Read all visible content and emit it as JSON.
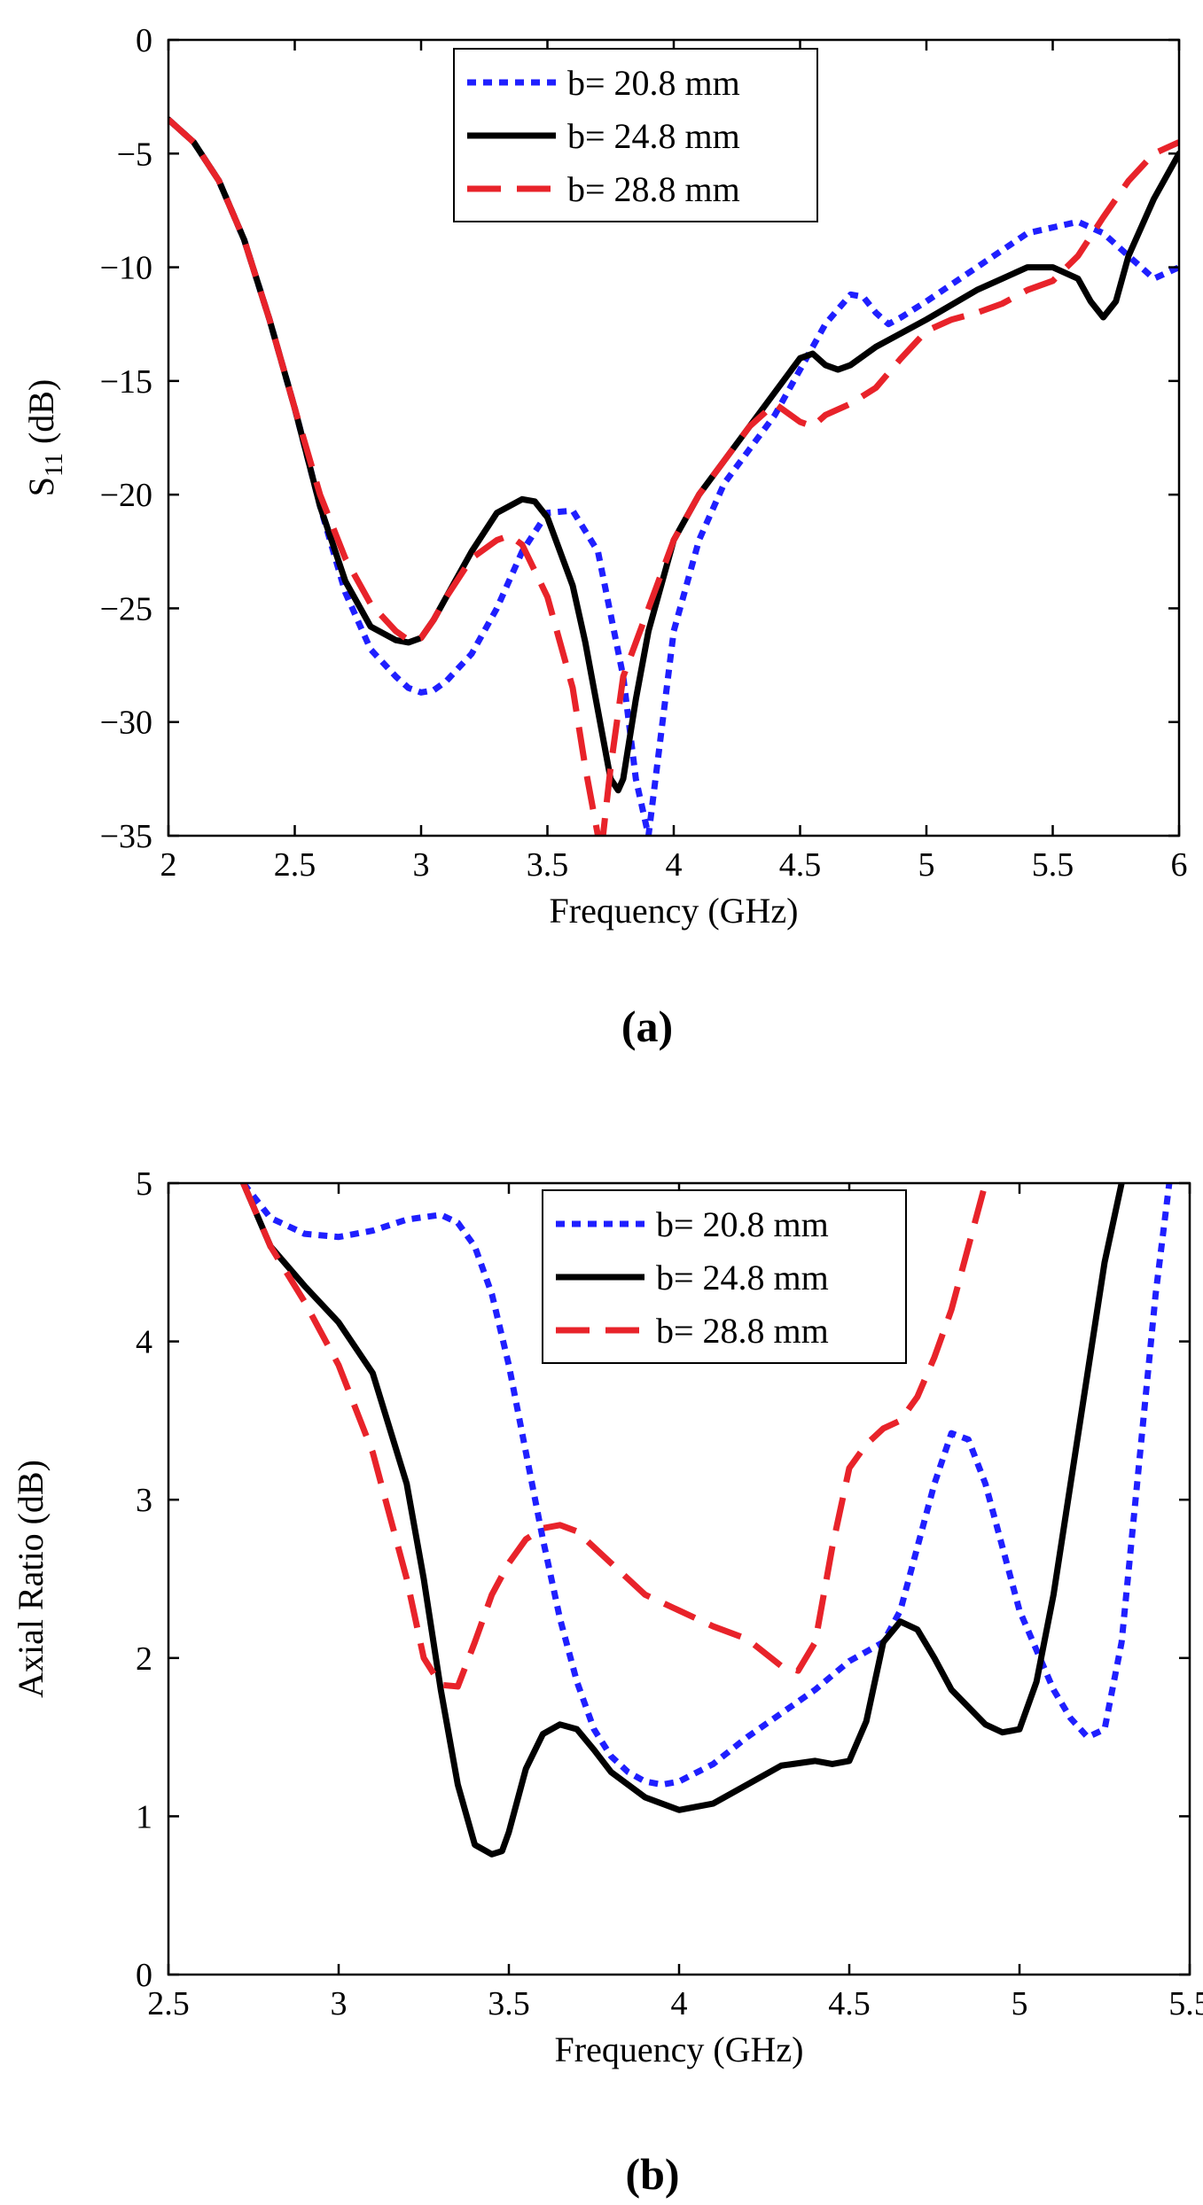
{
  "chart_data": [
    {
      "type": "line",
      "panel_label": "(a)",
      "xlabel": "Frequency (GHz)",
      "ylabel_main": "S",
      "ylabel_sub": "11",
      "ylabel_suffix": " (dB)",
      "xlim": [
        2,
        6
      ],
      "ylim": [
        -35,
        0
      ],
      "xticks": [
        2,
        2.5,
        3,
        3.5,
        4,
        4.5,
        5,
        5.5,
        6
      ],
      "xtick_labels": [
        "2",
        "2.5",
        "3",
        "3.5",
        "4",
        "4.5",
        "5",
        "5.5",
        "6"
      ],
      "yticks": [
        0,
        -5,
        -10,
        -15,
        -20,
        -25,
        -30,
        -35
      ],
      "ytick_labels": [
        "0",
        "−5",
        "−10",
        "−15",
        "−20",
        "−25",
        "−30",
        "−35"
      ],
      "legend_position": "top-center",
      "series": [
        {
          "name": "b= 20.8 mm",
          "color": "#1f1fff",
          "style": "dotted",
          "x": [
            2,
            2.1,
            2.2,
            2.3,
            2.4,
            2.5,
            2.6,
            2.7,
            2.8,
            2.9,
            2.95,
            3.0,
            3.05,
            3.1,
            3.2,
            3.3,
            3.4,
            3.5,
            3.6,
            3.7,
            3.8,
            3.85,
            3.9,
            3.95,
            4.0,
            4.1,
            4.2,
            4.3,
            4.4,
            4.5,
            4.6,
            4.7,
            4.75,
            4.8,
            4.85,
            4.9,
            5.0,
            5.2,
            5.4,
            5.6,
            5.7,
            5.8,
            5.9,
            6.0
          ],
          "y": [
            -3.5,
            -4.5,
            -6.2,
            -8.8,
            -12.3,
            -16.2,
            -20.5,
            -24.3,
            -26.8,
            -28.0,
            -28.5,
            -28.7,
            -28.6,
            -28.2,
            -27.0,
            -25.0,
            -22.5,
            -20.8,
            -20.7,
            -22.5,
            -28.0,
            -32.5,
            -35.0,
            -30.5,
            -26.0,
            -22.0,
            -19.5,
            -18.0,
            -16.5,
            -14.5,
            -12.5,
            -11.2,
            -11.3,
            -12.0,
            -12.5,
            -12.2,
            -11.5,
            -10.0,
            -8.5,
            -8.0,
            -8.5,
            -9.5,
            -10.5,
            -10.0
          ]
        },
        {
          "name": "b= 24.8 mm",
          "color": "#000000",
          "style": "solid",
          "x": [
            2,
            2.1,
            2.2,
            2.3,
            2.4,
            2.5,
            2.6,
            2.7,
            2.8,
            2.9,
            2.95,
            3.0,
            3.05,
            3.1,
            3.2,
            3.3,
            3.4,
            3.45,
            3.5,
            3.6,
            3.65,
            3.7,
            3.75,
            3.78,
            3.8,
            3.85,
            3.9,
            4.0,
            4.1,
            4.2,
            4.3,
            4.4,
            4.5,
            4.55,
            4.6,
            4.65,
            4.7,
            4.8,
            5.0,
            5.2,
            5.3,
            5.4,
            5.5,
            5.6,
            5.65,
            5.7,
            5.75,
            5.8,
            5.9,
            6.0
          ],
          "y": [
            -3.5,
            -4.5,
            -6.2,
            -8.8,
            -12.3,
            -16.2,
            -20.5,
            -23.8,
            -25.8,
            -26.4,
            -26.5,
            -26.3,
            -25.5,
            -24.5,
            -22.5,
            -20.8,
            -20.2,
            -20.3,
            -21.0,
            -24.0,
            -26.5,
            -29.5,
            -32.5,
            -33.0,
            -32.5,
            -29.0,
            -26.0,
            -22.0,
            -20.0,
            -18.5,
            -17.0,
            -15.5,
            -14.0,
            -13.8,
            -14.3,
            -14.5,
            -14.3,
            -13.5,
            -12.3,
            -11.0,
            -10.5,
            -10.0,
            -10.0,
            -10.5,
            -11.5,
            -12.2,
            -11.5,
            -9.5,
            -7.0,
            -5.0
          ]
        },
        {
          "name": "b= 28.8 mm",
          "color": "#e8232a",
          "style": "dashed",
          "x": [
            2,
            2.1,
            2.2,
            2.3,
            2.4,
            2.5,
            2.6,
            2.7,
            2.8,
            2.9,
            2.95,
            3.0,
            3.05,
            3.1,
            3.2,
            3.3,
            3.35,
            3.4,
            3.5,
            3.6,
            3.65,
            3.7,
            3.72,
            3.75,
            3.8,
            3.9,
            4.0,
            4.1,
            4.2,
            4.3,
            4.4,
            4.5,
            4.55,
            4.6,
            4.7,
            4.8,
            4.9,
            5.0,
            5.1,
            5.2,
            5.3,
            5.4,
            5.5,
            5.6,
            5.7,
            5.8,
            5.9,
            6.0
          ],
          "y": [
            -3.5,
            -4.5,
            -6.2,
            -8.8,
            -12.3,
            -16.2,
            -20.0,
            -22.8,
            -24.8,
            -26.0,
            -26.4,
            -26.3,
            -25.5,
            -24.5,
            -22.8,
            -22.0,
            -21.8,
            -22.2,
            -24.5,
            -28.5,
            -32.0,
            -35.0,
            -35.0,
            -32.0,
            -28.0,
            -25.0,
            -22.0,
            -20.0,
            -18.5,
            -17.0,
            -16.0,
            -16.8,
            -17.0,
            -16.5,
            -16.0,
            -15.3,
            -14.0,
            -12.8,
            -12.3,
            -12.0,
            -11.6,
            -11.0,
            -10.6,
            -9.5,
            -7.8,
            -6.2,
            -5.0,
            -4.5
          ]
        }
      ]
    },
    {
      "type": "line",
      "panel_label": "(b)",
      "xlabel": "Frequency (GHz)",
      "ylabel": "Axial Ratio (dB)",
      "xlim": [
        2.5,
        5.5
      ],
      "ylim": [
        0,
        5
      ],
      "xticks": [
        2.5,
        3,
        3.5,
        4,
        4.5,
        5,
        5.5
      ],
      "xtick_labels": [
        "2.5",
        "3",
        "3.5",
        "4",
        "4.5",
        "5",
        "5.5"
      ],
      "yticks": [
        0,
        1,
        2,
        3,
        4,
        5
      ],
      "ytick_labels": [
        "0",
        "1",
        "2",
        "3",
        "4",
        "5"
      ],
      "legend_position": "top-center",
      "series": [
        {
          "name": "b= 20.8 mm",
          "color": "#1f1fff",
          "style": "dotted",
          "x": [
            2.72,
            2.8,
            2.9,
            3.0,
            3.1,
            3.2,
            3.3,
            3.35,
            3.4,
            3.45,
            3.5,
            3.55,
            3.6,
            3.65,
            3.7,
            3.75,
            3.8,
            3.85,
            3.9,
            3.95,
            4.0,
            4.1,
            4.2,
            4.3,
            4.4,
            4.5,
            4.6,
            4.65,
            4.7,
            4.75,
            4.8,
            4.85,
            4.9,
            4.95,
            5.0,
            5.05,
            5.1,
            5.15,
            5.2,
            5.25,
            5.3,
            5.35,
            5.4,
            5.44
          ],
          "y": [
            5.0,
            4.78,
            4.68,
            4.66,
            4.7,
            4.77,
            4.8,
            4.75,
            4.6,
            4.3,
            3.85,
            3.3,
            2.75,
            2.25,
            1.85,
            1.55,
            1.38,
            1.28,
            1.22,
            1.2,
            1.22,
            1.33,
            1.5,
            1.65,
            1.8,
            1.98,
            2.1,
            2.3,
            2.7,
            3.1,
            3.42,
            3.38,
            3.1,
            2.7,
            2.3,
            2.05,
            1.8,
            1.62,
            1.5,
            1.55,
            2.1,
            3.2,
            4.3,
            5.0
          ]
        },
        {
          "name": "b= 24.8 mm",
          "color": "#000000",
          "style": "solid",
          "x": [
            2.72,
            2.8,
            2.9,
            3.0,
            3.1,
            3.2,
            3.25,
            3.3,
            3.35,
            3.4,
            3.45,
            3.48,
            3.5,
            3.55,
            3.6,
            3.65,
            3.7,
            3.75,
            3.8,
            3.9,
            4.0,
            4.1,
            4.2,
            4.3,
            4.4,
            4.45,
            4.5,
            4.55,
            4.6,
            4.65,
            4.7,
            4.75,
            4.8,
            4.9,
            4.95,
            5.0,
            5.05,
            5.1,
            5.15,
            5.2,
            5.25,
            5.3
          ],
          "y": [
            5.0,
            4.6,
            4.35,
            4.12,
            3.8,
            3.1,
            2.5,
            1.8,
            1.2,
            0.82,
            0.76,
            0.78,
            0.9,
            1.3,
            1.52,
            1.58,
            1.55,
            1.42,
            1.28,
            1.12,
            1.04,
            1.08,
            1.2,
            1.32,
            1.35,
            1.33,
            1.35,
            1.6,
            2.1,
            2.23,
            2.18,
            2.0,
            1.8,
            1.58,
            1.53,
            1.55,
            1.85,
            2.4,
            3.1,
            3.8,
            4.5,
            5.0
          ]
        },
        {
          "name": "b= 28.8 mm",
          "color": "#e8232a",
          "style": "dashed",
          "x": [
            2.72,
            2.8,
            2.9,
            3.0,
            3.1,
            3.2,
            3.25,
            3.3,
            3.35,
            3.4,
            3.45,
            3.5,
            3.55,
            3.6,
            3.65,
            3.7,
            3.75,
            3.8,
            3.9,
            4.0,
            4.1,
            4.2,
            4.3,
            4.35,
            4.4,
            4.45,
            4.5,
            4.55,
            4.6,
            4.65,
            4.7,
            4.75,
            4.8,
            4.85,
            4.9
          ],
          "y": [
            5.0,
            4.6,
            4.25,
            3.85,
            3.3,
            2.5,
            2.0,
            1.83,
            1.82,
            2.1,
            2.4,
            2.6,
            2.75,
            2.82,
            2.84,
            2.8,
            2.7,
            2.6,
            2.4,
            2.3,
            2.2,
            2.12,
            1.95,
            1.92,
            2.1,
            2.7,
            3.2,
            3.35,
            3.45,
            3.5,
            3.65,
            3.9,
            4.2,
            4.6,
            5.0
          ]
        }
      ]
    }
  ]
}
